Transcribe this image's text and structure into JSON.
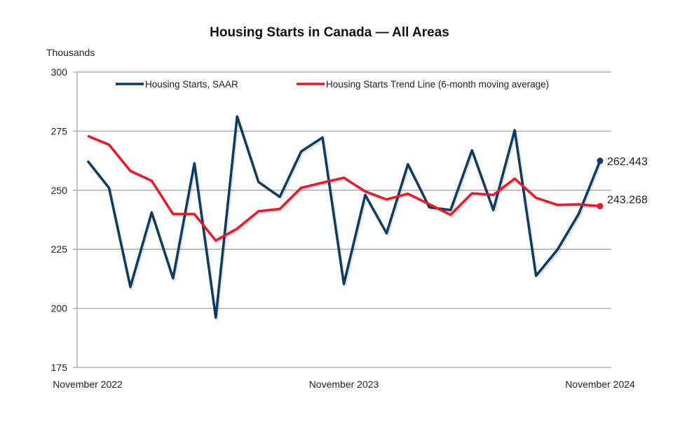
{
  "chart_data": {
    "type": "line",
    "title": "Housing Starts in Canada — All Areas",
    "ylabel": "Thousands",
    "xlabel": "",
    "ylim": [
      175,
      300
    ],
    "yticks": [
      175,
      200,
      225,
      250,
      275,
      300
    ],
    "grid": true,
    "legend_position": "top",
    "x": [
      "Nov 2022",
      "Dec 2022",
      "Jan 2023",
      "Feb 2023",
      "Mar 2023",
      "Apr 2023",
      "May 2023",
      "Jun 2023",
      "Jul 2023",
      "Aug 2023",
      "Sep 2023",
      "Oct 2023",
      "Nov 2023",
      "Dec 2023",
      "Jan 2024",
      "Feb 2024",
      "Mar 2024",
      "Apr 2024",
      "May 2024",
      "Jun 2024",
      "Jul 2024",
      "Aug 2024",
      "Sep 2024",
      "Oct 2024",
      "Nov 2024"
    ],
    "xtick_labels": [
      {
        "index": 0,
        "label": "November 2022"
      },
      {
        "index": 12,
        "label": "November 2023"
      },
      {
        "index": 24,
        "label": "November 2024"
      }
    ],
    "series": [
      {
        "name": "Housing Starts, SAAR",
        "color": "#0d3b5e",
        "values": [
          262.4,
          251.0,
          209.1,
          240.6,
          212.7,
          261.4,
          196.1,
          281.2,
          253.5,
          247.2,
          266.4,
          272.3,
          210.3,
          248.0,
          231.8,
          261.0,
          242.8,
          241.6,
          266.9,
          241.6,
          275.4,
          213.8,
          224.8,
          240.0,
          262.443
        ],
        "end_label": "262.443"
      },
      {
        "name": "Housing Starts Trend Line (6-month moving average)",
        "color": "#e8192c",
        "values": [
          273.0,
          269.3,
          258.2,
          254.0,
          239.9,
          239.9,
          228.7,
          233.7,
          241.1,
          242.1,
          251.0,
          253.2,
          255.3,
          249.5,
          246.1,
          248.5,
          244.1,
          239.6,
          248.7,
          248.0,
          254.9,
          246.8,
          243.8,
          244.0,
          243.268
        ],
        "end_label": "243.268"
      }
    ]
  }
}
